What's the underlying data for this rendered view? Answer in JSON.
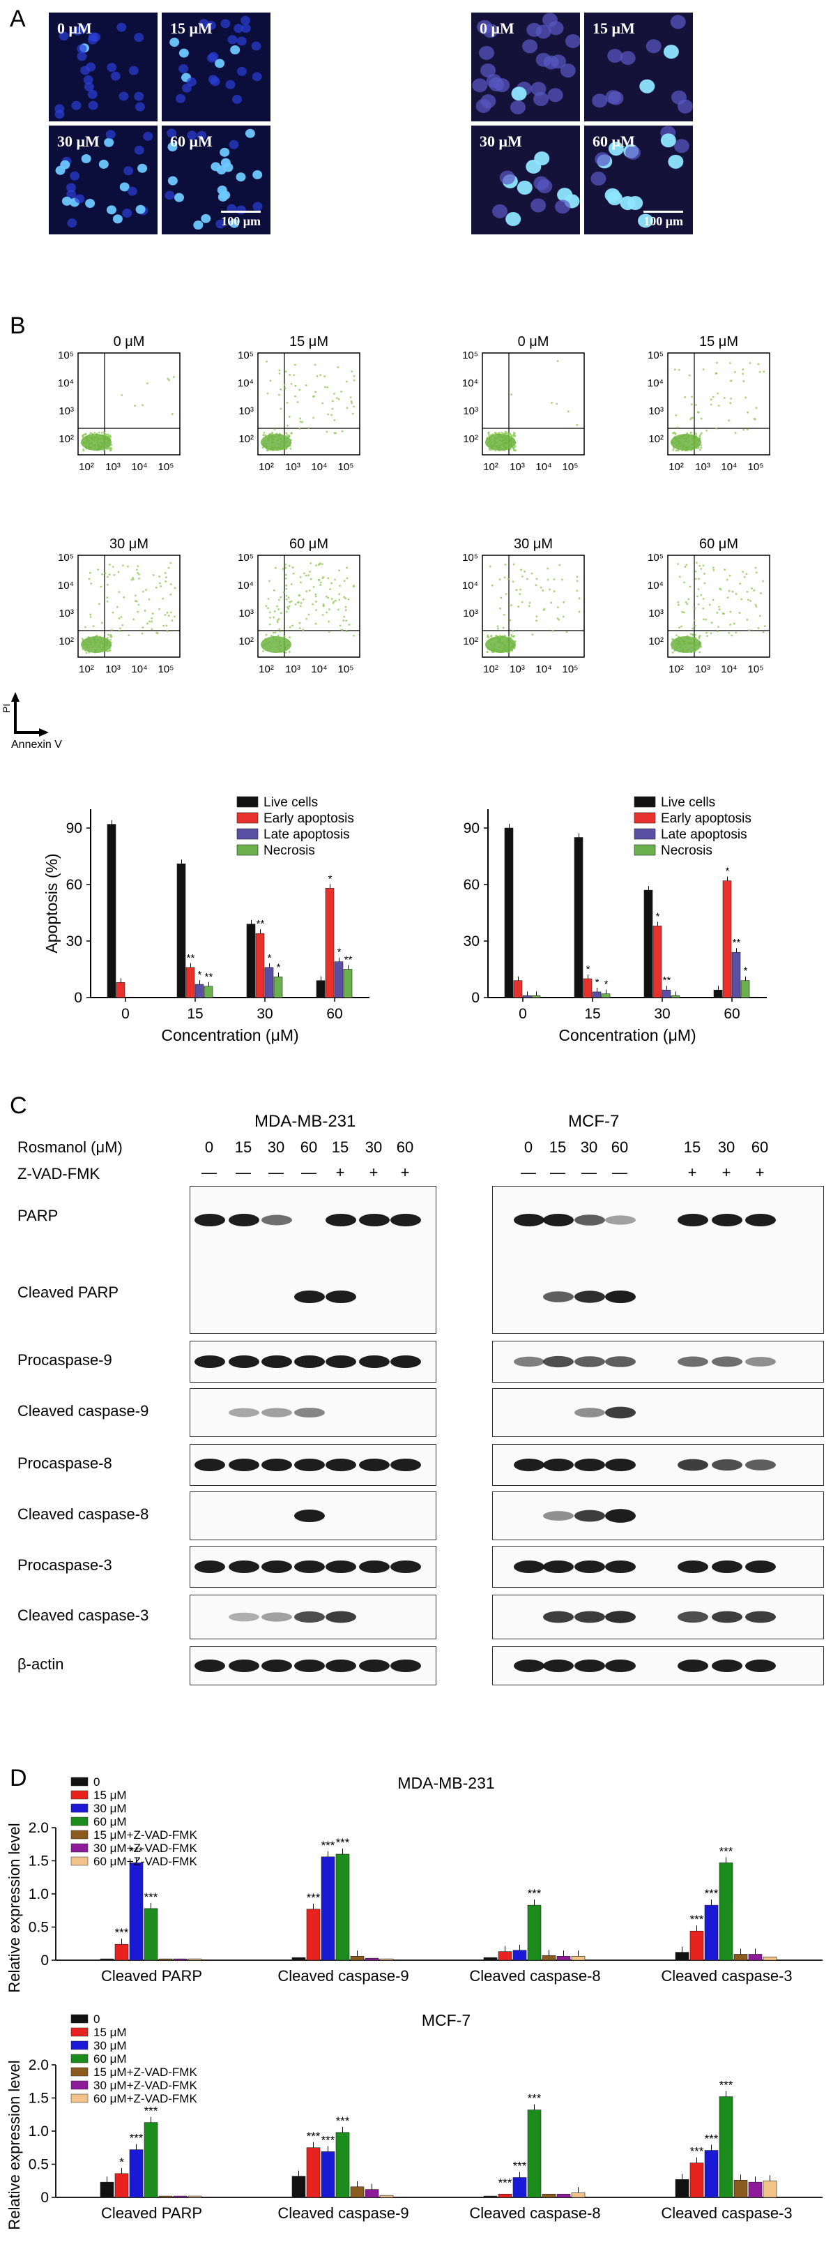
{
  "panels": {
    "A": "A",
    "B": "B",
    "C": "C",
    "D": "D"
  },
  "microscopy": {
    "labels": [
      "0 μM",
      "15 μM",
      "30 μM",
      "60 μM"
    ],
    "scale_bar": "100 μm"
  },
  "flow": {
    "labels": [
      "0 μM",
      "15 μM",
      "30 μM",
      "60 μM"
    ],
    "y_ticks": [
      "10⁵",
      "10⁴",
      "10³",
      "10²"
    ],
    "x_ticks": [
      "10²",
      "10³",
      "10⁴",
      "10⁵"
    ],
    "axis_y": "PI",
    "axis_x": "Annexin V"
  },
  "western": {
    "cell_lines": [
      "MDA-MB-231",
      "MCF-7"
    ],
    "rosmanol_label": "Rosmanol (μM)",
    "zvad_label": "Z-VAD-FMK",
    "conc_left": [
      "0",
      "15",
      "30",
      "60",
      "15",
      "30",
      "60"
    ],
    "conc_right": [
      "0",
      "15",
      "30",
      "60",
      "15",
      "30",
      "60"
    ],
    "zvad_left": [
      "—",
      "—",
      "—",
      "—",
      "+",
      "+",
      "+"
    ],
    "zvad_right": [
      "—",
      "—",
      "—",
      "—",
      "+",
      "+",
      "+"
    ],
    "rows": [
      "PARP",
      "Cleaved PARP",
      "Procaspase-9",
      "Cleaved caspase-9",
      "Procaspase-8",
      "Cleaved caspase-8",
      "Procaspase-3",
      "Cleaved caspase-3",
      "β-actin"
    ]
  },
  "chart_data": [
    {
      "type": "bar",
      "id": "apoptosis-left",
      "ylabel": "Apoptosis (%)",
      "xlabel": "Concentration (μM)",
      "categories": [
        "0",
        "15",
        "30",
        "60"
      ],
      "ylim": [
        0,
        100
      ],
      "yticks": [
        0,
        30,
        60,
        90
      ],
      "series": [
        {
          "name": "Live cells",
          "color": "#111111",
          "values": [
            92,
            71,
            39,
            9
          ],
          "stars": [
            "",
            "",
            "",
            ""
          ]
        },
        {
          "name": "Early apoptosis",
          "color": "#e8302c",
          "values": [
            8,
            16,
            34,
            58
          ],
          "stars": [
            "",
            "**",
            "**",
            "*"
          ]
        },
        {
          "name": "Late apoptosis",
          "color": "#5a4fa3",
          "values": [
            0,
            7,
            16,
            19
          ],
          "stars": [
            "",
            "*",
            "*",
            "*"
          ]
        },
        {
          "name": "Necrosis",
          "color": "#6ab04c",
          "values": [
            0,
            6,
            11,
            15
          ],
          "stars": [
            "",
            "**",
            "*",
            "**"
          ]
        }
      ]
    },
    {
      "type": "bar",
      "id": "apoptosis-right",
      "ylabel": "",
      "xlabel": "Concentration (μM)",
      "categories": [
        "0",
        "15",
        "30",
        "60"
      ],
      "ylim": [
        0,
        100
      ],
      "yticks": [
        0,
        30,
        60,
        90
      ],
      "series": [
        {
          "name": "Live cells",
          "color": "#111111",
          "values": [
            90,
            85,
            57,
            4
          ],
          "stars": [
            "",
            "",
            "",
            ""
          ]
        },
        {
          "name": "Early apoptosis",
          "color": "#e8302c",
          "values": [
            9,
            10,
            38,
            62
          ],
          "stars": [
            "",
            "*",
            "*",
            "*"
          ]
        },
        {
          "name": "Late apoptosis",
          "color": "#5a4fa3",
          "values": [
            1,
            3,
            4,
            24
          ],
          "stars": [
            "",
            "*",
            "**",
            "**"
          ]
        },
        {
          "name": "Necrosis",
          "color": "#6ab04c",
          "values": [
            1,
            2,
            1,
            9
          ],
          "stars": [
            "",
            "*",
            "",
            "*"
          ]
        }
      ]
    },
    {
      "type": "bar",
      "id": "expression-mda",
      "title": "MDA-MB-231",
      "ylabel": "Relative expression level",
      "categories": [
        "Cleaved PARP",
        "Cleaved caspase-9",
        "Cleaved caspase-8",
        "Cleaved caspase-3"
      ],
      "ylim": [
        0,
        2.0
      ],
      "yticks": [
        "0",
        "0.5",
        "1.0",
        "1.5",
        "2.0"
      ],
      "series": [
        {
          "name": "0",
          "color": "#111111",
          "values": [
            0.02,
            0.04,
            0.04,
            0.12
          ],
          "stars": [
            "",
            "",
            "",
            ""
          ]
        },
        {
          "name": "15 μM",
          "color": "#e8231f",
          "values": [
            0.24,
            0.77,
            0.13,
            0.44
          ],
          "stars": [
            "***",
            "***",
            "",
            "***"
          ]
        },
        {
          "name": "30 μM",
          "color": "#1a1ad6",
          "values": [
            1.47,
            1.56,
            0.15,
            0.83
          ],
          "stars": [
            "***",
            "***",
            "",
            "***"
          ]
        },
        {
          "name": "60 μM",
          "color": "#1c8c1c",
          "values": [
            0.78,
            1.6,
            0.83,
            1.47
          ],
          "stars": [
            "***",
            "***",
            "***",
            "***"
          ]
        },
        {
          "name": "15 μM+Z-VAD-FMK",
          "color": "#8a5a1e",
          "values": [
            0.02,
            0.06,
            0.07,
            0.09
          ],
          "stars": [
            "",
            "",
            "",
            ""
          ]
        },
        {
          "name": "30 μM+Z-VAD-FMK",
          "color": "#8e1b9a",
          "values": [
            0.02,
            0.03,
            0.06,
            0.09
          ],
          "stars": [
            "",
            "",
            "",
            ""
          ]
        },
        {
          "name": "60 μM+Z-VAD-FMK",
          "color": "#f2c48a",
          "values": [
            0.02,
            0.02,
            0.06,
            0.05
          ],
          "stars": [
            "",
            "",
            "",
            ""
          ]
        }
      ]
    },
    {
      "type": "bar",
      "id": "expression-mcf7",
      "title": "MCF-7",
      "ylabel": "Relative expression level",
      "categories": [
        "Cleaved PARP",
        "Cleaved caspase-9",
        "Cleaved caspase-8",
        "Cleaved caspase-3"
      ],
      "ylim": [
        0,
        2.0
      ],
      "yticks": [
        "0",
        "0.5",
        "1.0",
        "1.5",
        "2.0"
      ],
      "series": [
        {
          "name": "0",
          "color": "#111111",
          "values": [
            0.23,
            0.32,
            0.02,
            0.27
          ],
          "stars": [
            "",
            "",
            "",
            ""
          ]
        },
        {
          "name": "15 μM",
          "color": "#e8231f",
          "values": [
            0.36,
            0.75,
            0.05,
            0.52
          ],
          "stars": [
            "*",
            "***",
            "***",
            "***"
          ]
        },
        {
          "name": "30 μM",
          "color": "#1a1ad6",
          "values": [
            0.72,
            0.69,
            0.3,
            0.71
          ],
          "stars": [
            "***",
            "***",
            "***",
            "***"
          ]
        },
        {
          "name": "60 μM",
          "color": "#1c8c1c",
          "values": [
            1.13,
            0.98,
            1.32,
            1.52
          ],
          "stars": [
            "***",
            "***",
            "***",
            "***"
          ]
        },
        {
          "name": "15 μM+Z-VAD-FMK",
          "color": "#8a5a1e",
          "values": [
            0.02,
            0.16,
            0.05,
            0.26
          ],
          "stars": [
            "",
            "",
            "",
            ""
          ]
        },
        {
          "name": "30 μM+Z-VAD-FMK",
          "color": "#8e1b9a",
          "values": [
            0.02,
            0.12,
            0.05,
            0.23
          ],
          "stars": [
            "",
            "",
            "",
            ""
          ]
        },
        {
          "name": "60 μM+Z-VAD-FMK",
          "color": "#f2c48a",
          "values": [
            0.02,
            0.03,
            0.07,
            0.25
          ],
          "stars": [
            "",
            "",
            "",
            ""
          ]
        }
      ]
    }
  ]
}
